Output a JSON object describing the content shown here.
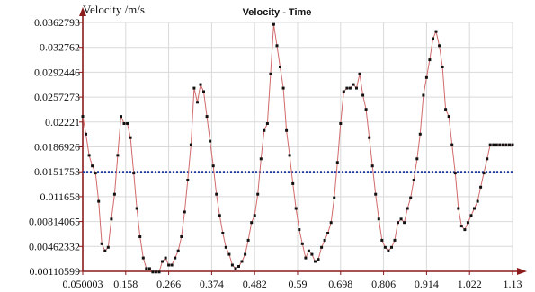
{
  "chart_data": {
    "type": "line",
    "title": "Velocity - Time",
    "ylabel": "Velocity /m/s",
    "xlabel": "",
    "xlim": [
      0.050003,
      1.13
    ],
    "ylim": [
      0.00110599,
      0.0362793
    ],
    "grid": true,
    "xticks": [
      "0.050003",
      "0.158",
      "0.266",
      "0.374",
      "0.482",
      "0.59",
      "0.698",
      "0.806",
      "0.914",
      "1.022",
      "1.13"
    ],
    "yticks": [
      "0.0362793",
      "0.032762",
      "0.0292446",
      "0.0257273",
      "0.02221",
      "0.0186926",
      "0.0151753",
      "0.011658",
      "0.00814065",
      "0.00462332",
      "0.00110599"
    ],
    "reference_line": 0.0151753,
    "colors": {
      "series": "#d16a6a",
      "points": "#111111",
      "axis": "#8b1a1a",
      "reference": "#1f3aa6",
      "grid": "#d9d9d9"
    },
    "series": [
      {
        "x": [
          0.05,
          0.058,
          0.066,
          0.074,
          0.082,
          0.09,
          0.098,
          0.106,
          0.114,
          0.122,
          0.13,
          0.138,
          0.146,
          0.154,
          0.162,
          0.17,
          0.178,
          0.186,
          0.194,
          0.202,
          0.21,
          0.218,
          0.226,
          0.234,
          0.242,
          0.25,
          0.258,
          0.266,
          0.274,
          0.282,
          0.29,
          0.298,
          0.306,
          0.314,
          0.322,
          0.33,
          0.338,
          0.346,
          0.354,
          0.362,
          0.37,
          0.378,
          0.386,
          0.394,
          0.402,
          0.41,
          0.418,
          0.426,
          0.434,
          0.442,
          0.45,
          0.458,
          0.466,
          0.474,
          0.482,
          0.49,
          0.498,
          0.506,
          0.514,
          0.522,
          0.53,
          0.538,
          0.546,
          0.554,
          0.562,
          0.57,
          0.578,
          0.586,
          0.594,
          0.602,
          0.61,
          0.618,
          0.626,
          0.634,
          0.642,
          0.65,
          0.658,
          0.666,
          0.674,
          0.682,
          0.69,
          0.698,
          0.706,
          0.714,
          0.722,
          0.73,
          0.738,
          0.746,
          0.754,
          0.762,
          0.77,
          0.778,
          0.786,
          0.794,
          0.802,
          0.81,
          0.818,
          0.826,
          0.834,
          0.842,
          0.85,
          0.858,
          0.866,
          0.874,
          0.882,
          0.89,
          0.898,
          0.906,
          0.914,
          0.922,
          0.93,
          0.938,
          0.946,
          0.954,
          0.962,
          0.97,
          0.978,
          0.986,
          0.994,
          1.002,
          1.01,
          1.018,
          1.026,
          1.034,
          1.042,
          1.05,
          1.058,
          1.066,
          1.074,
          1.082,
          1.09,
          1.098,
          1.106,
          1.114,
          1.122,
          1.13
        ],
        "values": [
          0.023,
          0.0205,
          0.0175,
          0.016,
          0.015,
          0.011,
          0.005,
          0.004,
          0.0045,
          0.0085,
          0.012,
          0.0175,
          0.023,
          0.022,
          0.022,
          0.02,
          0.015,
          0.01,
          0.006,
          0.003,
          0.0015,
          0.0015,
          0.001,
          0.001,
          0.001,
          0.0025,
          0.003,
          0.002,
          0.002,
          0.003,
          0.004,
          0.006,
          0.0095,
          0.014,
          0.019,
          0.027,
          0.025,
          0.0275,
          0.0265,
          0.023,
          0.0195,
          0.016,
          0.012,
          0.009,
          0.0065,
          0.0045,
          0.0035,
          0.002,
          0.0015,
          0.0018,
          0.0025,
          0.0035,
          0.0055,
          0.008,
          0.009,
          0.012,
          0.017,
          0.021,
          0.022,
          0.029,
          0.036,
          0.033,
          0.03,
          0.027,
          0.021,
          0.0175,
          0.0135,
          0.01,
          0.007,
          0.005,
          0.003,
          0.004,
          0.0035,
          0.0025,
          0.0028,
          0.0045,
          0.0055,
          0.0065,
          0.008,
          0.0115,
          0.0165,
          0.022,
          0.0265,
          0.027,
          0.027,
          0.0275,
          0.027,
          0.029,
          0.026,
          0.024,
          0.02,
          0.016,
          0.012,
          0.0085,
          0.0055,
          0.0045,
          0.004,
          0.0045,
          0.0055,
          0.008,
          0.0085,
          0.008,
          0.01,
          0.0115,
          0.014,
          0.017,
          0.0205,
          0.026,
          0.0285,
          0.031,
          0.034,
          0.035,
          0.033,
          0.03,
          0.024,
          0.023,
          0.019,
          0.015,
          0.01,
          0.0075,
          0.007,
          0.008,
          0.009,
          0.01,
          0.011,
          0.013,
          0.015,
          0.017,
          0.019,
          0.019,
          0.019,
          0.019,
          0.019,
          0.019,
          0.019,
          0.019
        ]
      }
    ]
  }
}
